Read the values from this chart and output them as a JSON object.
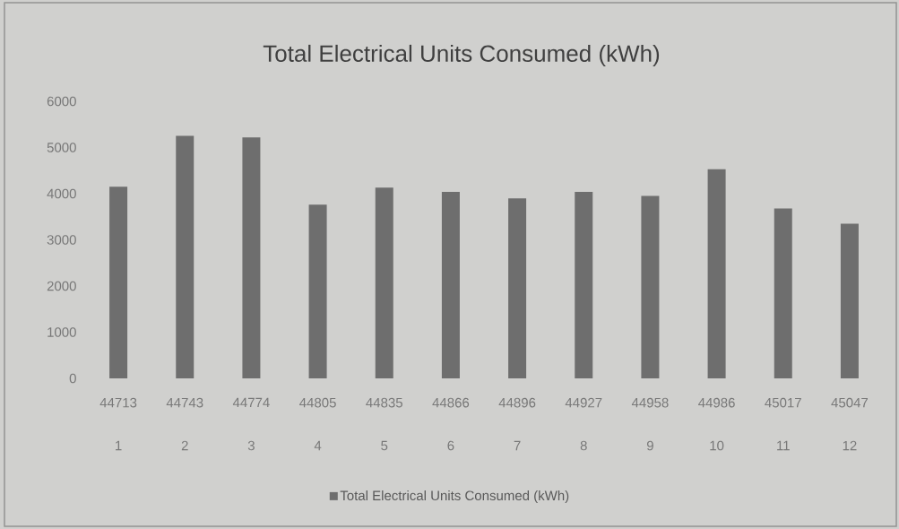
{
  "chart_data": {
    "type": "bar",
    "title": "Total Electrical Units Consumed (kWh)",
    "categories": [
      "44713",
      "44743",
      "44774",
      "44805",
      "44835",
      "44866",
      "44896",
      "44927",
      "44958",
      "44986",
      "45017",
      "45047"
    ],
    "series": [
      {
        "name": "Total Electrical Units Consumed (kWh)",
        "color": "#6e6e6e",
        "values": [
          4150,
          5250,
          5220,
          3760,
          4130,
          4040,
          3900,
          4040,
          3950,
          4530,
          3680,
          3350
        ]
      }
    ],
    "ylim": [
      0,
      6000
    ],
    "yticks": [
      0,
      1000,
      2000,
      3000,
      4000,
      5000,
      6000
    ],
    "annotations": [
      "1",
      "2",
      "3",
      "4",
      "5",
      "6",
      "7",
      "8",
      "9",
      "10",
      "11",
      "12"
    ],
    "grid": false,
    "legend": "bottom"
  }
}
